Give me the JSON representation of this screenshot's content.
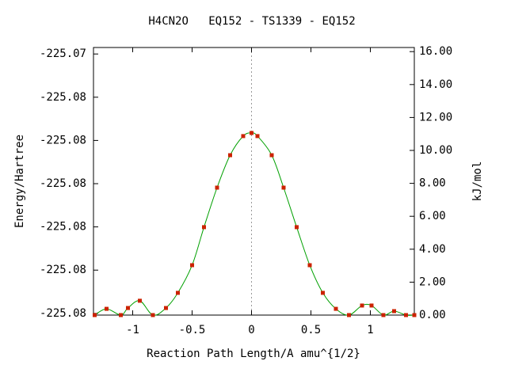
{
  "chart_data": {
    "type": "line",
    "title": "H4CN2O   EQ152 - TS1339 - EQ152",
    "xlabel": "Reaction Path Length/A amu^{1/2}",
    "ylabel": "Energy/Hartree",
    "y2label": "kJ/mol",
    "xlim": [
      -1.33,
      1.37
    ],
    "xticks": [
      -1,
      -0.5,
      0,
      0.5,
      1
    ],
    "ylim": [
      -225.08064,
      -225.07445
    ],
    "yticks": [
      {
        "value": -225.0806,
        "label": "-225.08"
      },
      {
        "value": -225.0796,
        "label": "-225.08"
      },
      {
        "value": -225.0786,
        "label": "-225.08"
      },
      {
        "value": -225.0776,
        "label": "-225.08"
      },
      {
        "value": -225.0766,
        "label": "-225.08"
      },
      {
        "value": -225.0756,
        "label": "-225.08"
      },
      {
        "value": -225.0746,
        "label": "-225.07"
      }
    ],
    "y2lim": [
      0,
      16.25
    ],
    "y2ticks": [
      {
        "value": 0,
        "label": "0.00"
      },
      {
        "value": 2,
        "label": "2.00"
      },
      {
        "value": 4,
        "label": "4.00"
      },
      {
        "value": 6,
        "label": "6.00"
      },
      {
        "value": 8,
        "label": "8.00"
      },
      {
        "value": 10,
        "label": "10.00"
      },
      {
        "value": 12,
        "label": "12.00"
      },
      {
        "value": 14,
        "label": "14.00"
      },
      {
        "value": 16,
        "label": "16.00"
      }
    ],
    "series": [
      {
        "axis": "y2",
        "color": "#00a000",
        "marker_color": "#cc2200",
        "x": [
          -1.32,
          -1.22,
          -1.1,
          -1.04,
          -0.94,
          -0.83,
          -0.72,
          -0.62,
          -0.5,
          -0.4,
          -0.29,
          -0.18,
          -0.07,
          0,
          0.05,
          0.17,
          0.27,
          0.38,
          0.49,
          0.6,
          0.71,
          0.82,
          0.93,
          1.01,
          1.11,
          1.2,
          1.3,
          1.37
        ],
        "values": [
          0,
          0.38,
          0,
          0.43,
          0.87,
          0,
          0.43,
          1.35,
          3.03,
          5.34,
          7.74,
          9.71,
          10.87,
          11.06,
          10.87,
          9.71,
          7.74,
          5.34,
          3.03,
          1.35,
          0.38,
          0,
          0.58,
          0.58,
          0,
          0.24,
          0,
          0
        ]
      }
    ]
  }
}
